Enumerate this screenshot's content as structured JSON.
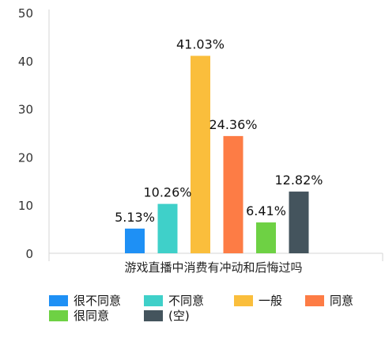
{
  "chart_data": {
    "type": "bar",
    "title": "",
    "xlabel": "游戏直播中消费有冲动和后悔过吗",
    "ylabel": "",
    "ylim": [
      0,
      50
    ],
    "yticks": [
      0,
      10,
      20,
      30,
      40,
      50
    ],
    "grid": false,
    "legend_position": "bottom",
    "categories": [
      "游戏直播中消费有冲动和后悔过吗"
    ],
    "series": [
      {
        "name": "很不同意",
        "values": [
          5.13
        ],
        "label": "5.13%",
        "color": "#1E90F5"
      },
      {
        "name": "不同意",
        "values": [
          10.26
        ],
        "label": "10.26%",
        "color": "#3FD0C9"
      },
      {
        "name": "一般",
        "values": [
          41.03
        ],
        "label": "41.03%",
        "color": "#FABE3C"
      },
      {
        "name": "同意",
        "values": [
          24.36
        ],
        "label": "24.36%",
        "color": "#FD7C45"
      },
      {
        "name": "很同意",
        "values": [
          6.41
        ],
        "label": "6.41%",
        "color": "#6ED144"
      },
      {
        "name": "(空)",
        "values": [
          12.82
        ],
        "label": "12.82%",
        "color": "#44545D"
      }
    ]
  }
}
